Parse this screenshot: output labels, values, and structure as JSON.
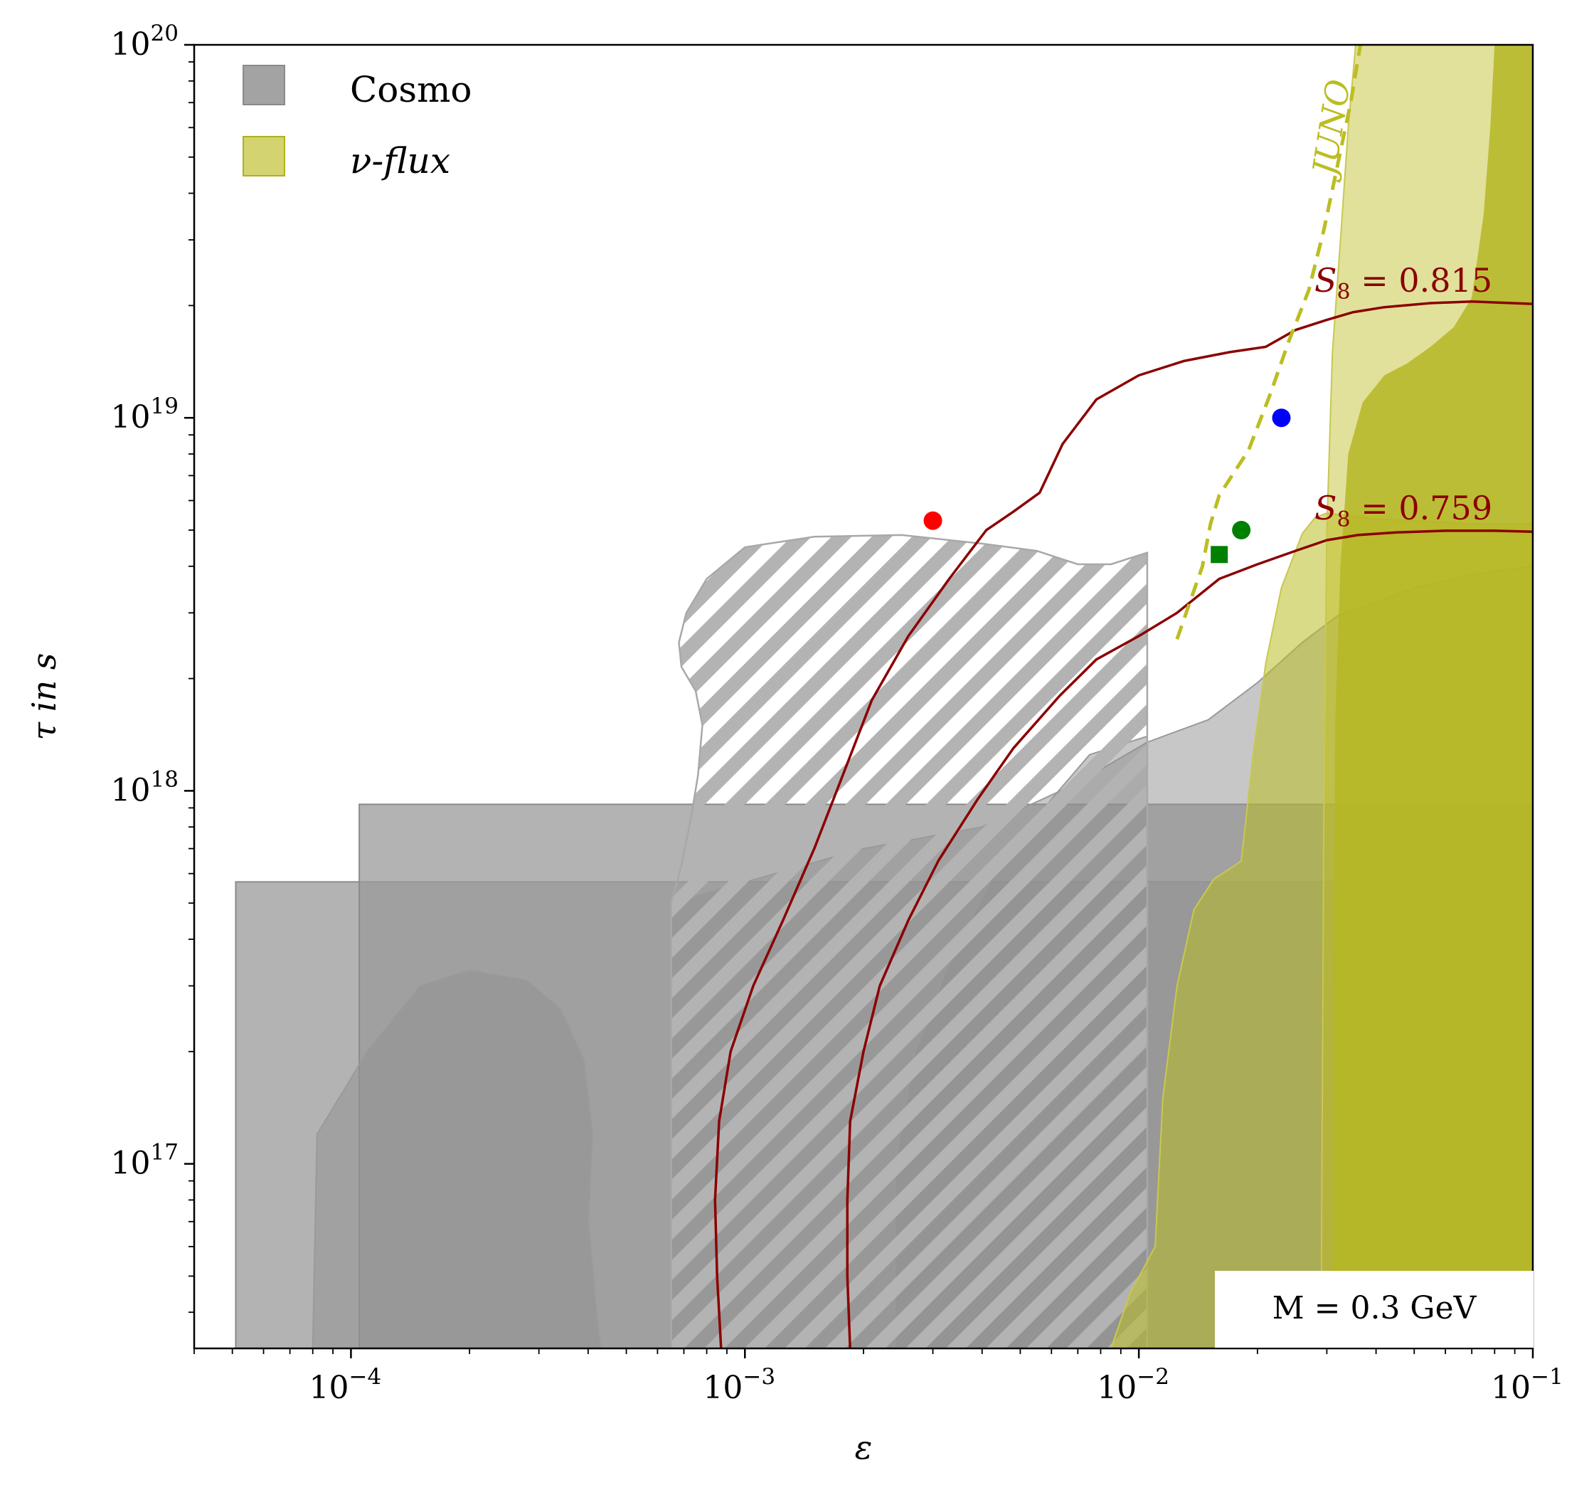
{
  "chart_data": {
    "type": "scatter",
    "title": "",
    "xlabel": "ε",
    "ylabel": "τ in s",
    "xscale": "log",
    "yscale": "log",
    "xlim": [
      4e-05,
      0.1
    ],
    "ylim": [
      3.2e+16,
      1e+20
    ],
    "x_ticks": [
      {
        "value": 0.0001,
        "base": "10",
        "exp": "−4"
      },
      {
        "value": 0.001,
        "base": "10",
        "exp": "−3"
      },
      {
        "value": 0.01,
        "base": "10",
        "exp": "−2"
      },
      {
        "value": 0.1,
        "base": "10",
        "exp": "−1"
      }
    ],
    "y_ticks": [
      {
        "value": 1e+17,
        "base": "10",
        "exp": "17"
      },
      {
        "value": 1e+18,
        "base": "10",
        "exp": "18"
      },
      {
        "value": 1e+19,
        "base": "10",
        "exp": "19"
      },
      {
        "value": 1e+20,
        "base": "10",
        "exp": "20"
      }
    ],
    "legend": {
      "position": "top-left",
      "entries": [
        {
          "label": "Cosmo",
          "color": "#999999"
        },
        {
          "label": "ν-flux",
          "color": "#bcbd22"
        }
      ]
    },
    "annotation": {
      "text": "M = 0.3 GeV",
      "position": "bottom-right"
    },
    "regions": {
      "cosmo_rects": [
        {
          "eps": [
            5.1e-05,
            0.1
          ],
          "tau_max": 5.7e+17
        },
        {
          "eps": [
            0.000105,
            0.1
          ],
          "tau_max": 9.2e+17
        }
      ],
      "cosmo_blob_left": [
        [
          8e-05,
          3.2e+16
        ],
        [
          8.2e-05,
          1.2e+17
        ],
        [
          0.00011,
          2e+17
        ],
        [
          0.00015,
          3e+17
        ],
        [
          0.0002,
          3.3e+17
        ],
        [
          0.00028,
          3.1e+17
        ],
        [
          0.00034,
          2.6e+17
        ],
        [
          0.00039,
          1.9e+17
        ],
        [
          0.00041,
          1.2e+17
        ],
        [
          0.0004,
          7e+16
        ],
        [
          0.00042,
          4e+16
        ],
        [
          0.00043,
          3.2e+16
        ]
      ],
      "cosmo_band": [
        [
          0.00065,
          3.2e+16
        ],
        [
          0.00065,
          5e+17
        ],
        [
          0.002,
          7e+17
        ],
        [
          0.004,
          8e+17
        ],
        [
          0.007,
          1.05e+18
        ],
        [
          0.0105,
          1.35e+18
        ],
        [
          0.015,
          1.55e+18
        ],
        [
          0.02,
          1.95e+18
        ],
        [
          0.026,
          2.5e+18
        ],
        [
          0.032,
          2.95e+18
        ],
        [
          0.04,
          3.2e+18
        ],
        [
          0.05,
          3.5e+18
        ],
        [
          0.07,
          3.8e+18
        ],
        [
          0.1,
          4e+18
        ],
        [
          0.1,
          3.2e+16
        ]
      ],
      "cosmo_blob_right": [
        [
          0.0024,
          3.2e+16
        ],
        [
          0.0024,
          1e+17
        ],
        [
          0.0027,
          2e+17
        ],
        [
          0.0033,
          3.5e+17
        ],
        [
          0.0043,
          6e+17
        ],
        [
          0.006,
          9.5e+17
        ],
        [
          0.0075,
          1.25e+18
        ],
        [
          0.0105,
          1.4e+18
        ],
        [
          0.0105,
          3.2e+16
        ]
      ],
      "cosmo_hatched": [
        [
          0.00065,
          3.2e+16
        ],
        [
          0.00065,
          5e+17
        ],
        [
          0.00069,
          6.3e+17
        ],
        [
          0.00073,
          8.5e+17
        ],
        [
          0.00076,
          1.1e+18
        ],
        [
          0.00078,
          1.5e+18
        ],
        [
          0.00075,
          1.85e+18
        ],
        [
          0.00069,
          2.15e+18
        ],
        [
          0.00068,
          2.5e+18
        ],
        [
          0.00071,
          3e+18
        ],
        [
          0.0008,
          3.7e+18
        ],
        [
          0.001,
          4.5e+18
        ],
        [
          0.0015,
          4.8e+18
        ],
        [
          0.0025,
          4.85e+18
        ],
        [
          0.004,
          4.6e+18
        ],
        [
          0.0055,
          4.4e+18
        ],
        [
          0.007,
          4.05e+18
        ],
        [
          0.0085,
          4.05e+18
        ],
        [
          0.0105,
          4.35e+18
        ],
        [
          0.0105,
          3.2e+16
        ]
      ],
      "nu_flux_light": [
        [
          0.0085,
          3.2e+16
        ],
        [
          0.0095,
          4.5e+16
        ],
        [
          0.011,
          6e+16
        ],
        [
          0.0115,
          1.5e+17
        ],
        [
          0.0125,
          3e+17
        ],
        [
          0.0138,
          4.8e+17
        ],
        [
          0.0155,
          5.8e+17
        ],
        [
          0.0175,
          6.3e+17
        ],
        [
          0.0182,
          6.5e+17
        ],
        [
          0.0195,
          1.25e+18
        ],
        [
          0.021,
          2.2e+18
        ],
        [
          0.023,
          3.5e+18
        ],
        [
          0.026,
          4.9e+18
        ],
        [
          0.028,
          5.4e+18
        ],
        [
          0.03,
          5.55e+18
        ],
        [
          0.035,
          5.45e+18
        ],
        [
          0.04,
          5.35e+18
        ],
        [
          0.05,
          5.3e+18
        ],
        [
          0.07,
          5.2e+18
        ],
        [
          0.1,
          5.2e+18
        ],
        [
          0.1,
          3.2e+16
        ]
      ],
      "nu_flux_medium": [
        [
          0.029,
          3.2e+16
        ],
        [
          0.0295,
          1e+18
        ],
        [
          0.03,
          5e+18
        ],
        [
          0.031,
          1.5e+19
        ],
        [
          0.0325,
          3e+19
        ],
        [
          0.034,
          6e+19
        ],
        [
          0.0355,
          1e+20
        ],
        [
          0.1,
          1e+20
        ],
        [
          0.1,
          3.2e+16
        ]
      ],
      "nu_flux_dark": [
        [
          0.031,
          3.2e+16
        ],
        [
          0.0315,
          1.5e+18
        ],
        [
          0.0325,
          4e+18
        ],
        [
          0.034,
          8e+18
        ],
        [
          0.037,
          1.1e+19
        ],
        [
          0.042,
          1.3e+19
        ],
        [
          0.048,
          1.4e+19
        ],
        [
          0.055,
          1.55e+19
        ],
        [
          0.063,
          1.75e+19
        ],
        [
          0.07,
          2.1e+19
        ],
        [
          0.075,
          3.5e+19
        ],
        [
          0.078,
          6e+19
        ],
        [
          0.08,
          1e+20
        ],
        [
          0.1,
          1e+20
        ],
        [
          0.1,
          3.2e+16
        ]
      ]
    },
    "series": [
      {
        "name": "S8 = 0.815",
        "type": "line",
        "color": "#8b0000",
        "points": [
          [
            0.00087,
            3.2e+16
          ],
          [
            0.00085,
            5e+16
          ],
          [
            0.00084,
            8e+16
          ],
          [
            0.00086,
            1.3e+17
          ],
          [
            0.00092,
            2e+17
          ],
          [
            0.00105,
            3e+17
          ],
          [
            0.00125,
            4.5e+17
          ],
          [
            0.0015,
            7e+17
          ],
          [
            0.0018,
            1.15e+18
          ],
          [
            0.0021,
            1.75e+18
          ],
          [
            0.0026,
            2.6e+18
          ],
          [
            0.0033,
            3.7e+18
          ],
          [
            0.0041,
            5e+18
          ],
          [
            0.0048,
            5.6e+18
          ],
          [
            0.0056,
            6.3e+18
          ],
          [
            0.0064,
            8.5e+18
          ],
          [
            0.0078,
            1.12e+19
          ],
          [
            0.01,
            1.3e+19
          ],
          [
            0.013,
            1.42e+19
          ],
          [
            0.017,
            1.5e+19
          ],
          [
            0.021,
            1.55e+19
          ],
          [
            0.025,
            1.72e+19
          ],
          [
            0.03,
            1.83e+19
          ],
          [
            0.035,
            1.92e+19
          ],
          [
            0.042,
            1.98e+19
          ],
          [
            0.055,
            2.03e+19
          ],
          [
            0.07,
            2.05e+19
          ],
          [
            0.1,
            2.02e+19
          ]
        ]
      },
      {
        "name": "S8 = 0.759",
        "type": "line",
        "color": "#8b0000",
        "points": [
          [
            0.00185,
            3.2e+16
          ],
          [
            0.00182,
            5e+16
          ],
          [
            0.00182,
            8e+16
          ],
          [
            0.00185,
            1.3e+17
          ],
          [
            0.002,
            2e+17
          ],
          [
            0.0022,
            3e+17
          ],
          [
            0.0026,
            4.5e+17
          ],
          [
            0.0031,
            6.5e+17
          ],
          [
            0.0039,
            9.5e+17
          ],
          [
            0.0048,
            1.3e+18
          ],
          [
            0.0063,
            1.8e+18
          ],
          [
            0.0078,
            2.25e+18
          ],
          [
            0.01,
            2.6e+18
          ],
          [
            0.0125,
            3e+18
          ],
          [
            0.016,
            3.7e+18
          ],
          [
            0.02,
            4.05e+18
          ],
          [
            0.025,
            4.4e+18
          ],
          [
            0.03,
            4.7e+18
          ],
          [
            0.036,
            4.85e+18
          ],
          [
            0.045,
            4.93e+18
          ],
          [
            0.06,
            4.98e+18
          ],
          [
            0.08,
            4.98e+18
          ],
          [
            0.1,
            4.95e+18
          ]
        ]
      },
      {
        "name": "JUNO",
        "type": "dashed",
        "color": "#bcbd22",
        "points": [
          [
            0.0125,
            2.55e+18
          ],
          [
            0.0145,
            4e+18
          ],
          [
            0.0152,
            5.2e+18
          ],
          [
            0.016,
            6.2e+18
          ],
          [
            0.019,
            8.2e+18
          ],
          [
            0.0215,
            1.15e+19
          ],
          [
            0.024,
            1.6e+19
          ],
          [
            0.027,
            2.2e+19
          ],
          [
            0.0295,
            3.2e+19
          ],
          [
            0.032,
            4.8e+19
          ],
          [
            0.0345,
            7e+19
          ],
          [
            0.0365,
            1e+20
          ]
        ]
      }
    ],
    "points": [
      {
        "eps": 0.003,
        "tau": 5.3e+18,
        "color": "#ff0000",
        "marker": "circle"
      },
      {
        "eps": 0.023,
        "tau": 1e+19,
        "color": "#0000ff",
        "marker": "circle"
      },
      {
        "eps": 0.0182,
        "tau": 5e+18,
        "color": "#008000",
        "marker": "circle"
      },
      {
        "eps": 0.016,
        "tau": 4.3e+18,
        "color": "#008000",
        "marker": "square"
      }
    ],
    "curve_labels": {
      "s8_upper": {
        "base": "S",
        "sub": "8",
        "rest": " = 0.815"
      },
      "s8_lower": {
        "base": "S",
        "sub": "8",
        "rest": " = 0.759"
      },
      "juno": "JUNO"
    }
  }
}
